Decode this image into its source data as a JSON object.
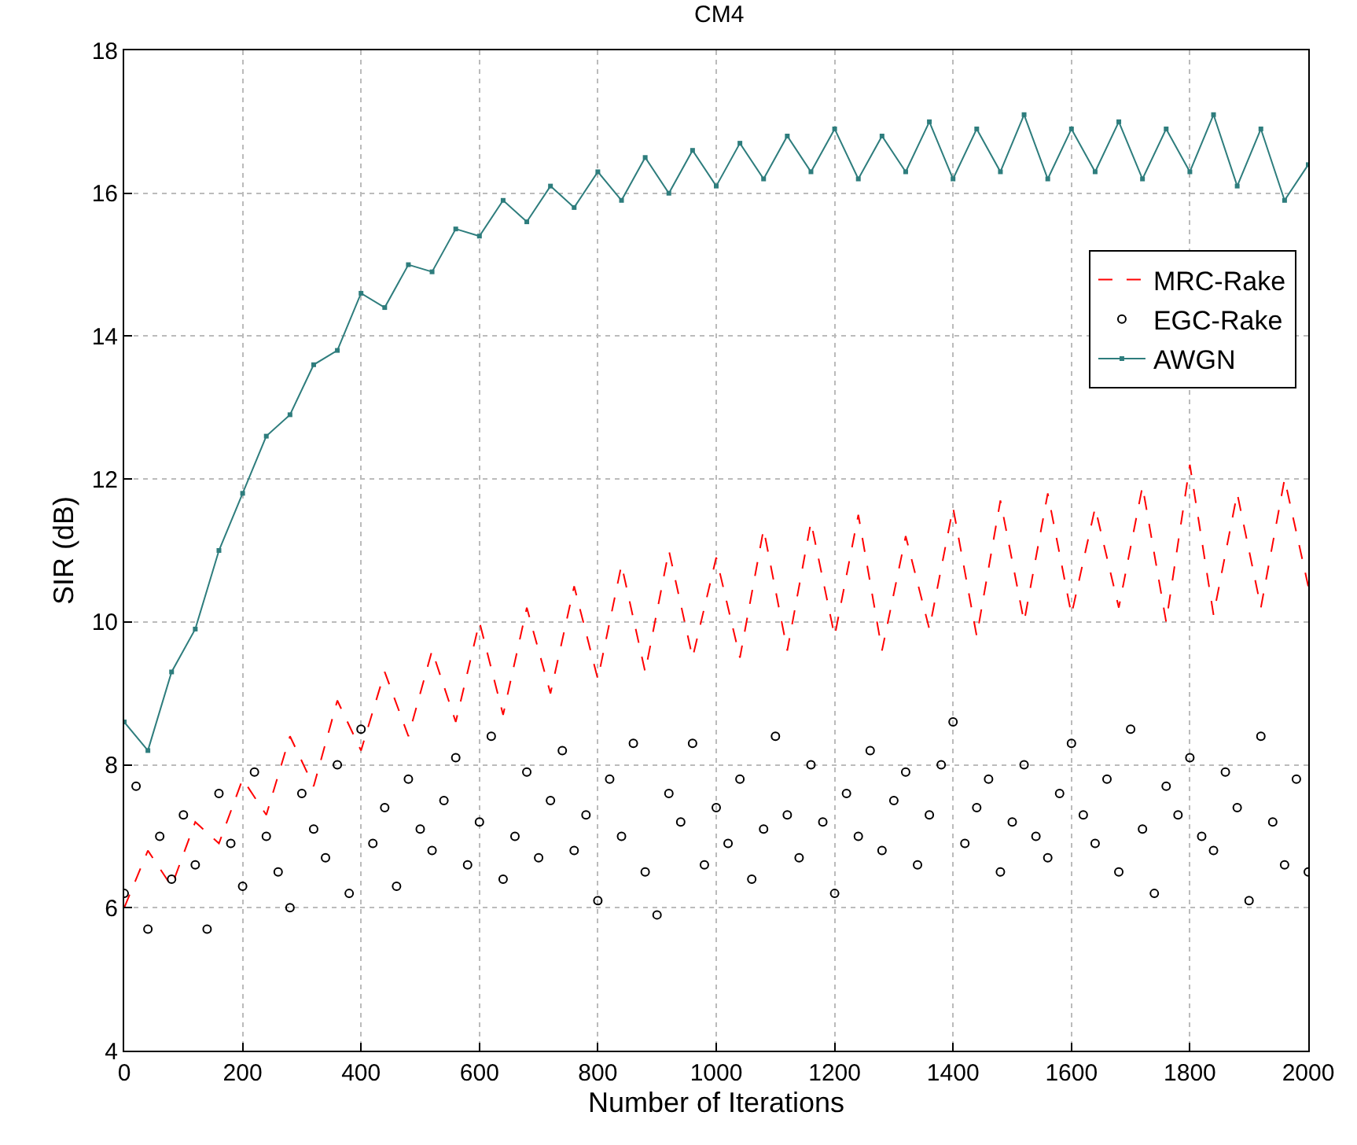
{
  "chart_data": {
    "type": "line",
    "title": "CM4",
    "xlabel": "Number of Iterations",
    "ylabel": "SIR (dB)",
    "xlim": [
      0,
      2000
    ],
    "xticks": [
      0,
      200,
      400,
      600,
      800,
      1000,
      1200,
      1400,
      1600,
      1800,
      2000
    ],
    "ylim": [
      4,
      18
    ],
    "yticks": [
      4,
      6,
      8,
      10,
      12,
      14,
      16,
      18
    ],
    "grid": true,
    "legend": "top right",
    "series": [
      {
        "name": "MRC-Rake",
        "color": "#ff0000",
        "line_style": "dashed",
        "marker": "none",
        "x": [
          0,
          40,
          80,
          120,
          160,
          200,
          240,
          280,
          320,
          360,
          400,
          440,
          480,
          520,
          560,
          600,
          640,
          680,
          720,
          760,
          800,
          840,
          880,
          920,
          960,
          1000,
          1040,
          1080,
          1120,
          1160,
          1200,
          1240,
          1280,
          1320,
          1360,
          1400,
          1440,
          1480,
          1520,
          1560,
          1600,
          1640,
          1680,
          1720,
          1760,
          1800,
          1840,
          1880,
          1920,
          1960,
          2000
        ],
        "values": [
          6.0,
          6.8,
          6.3,
          7.2,
          6.9,
          7.8,
          7.3,
          8.4,
          7.7,
          8.9,
          8.2,
          9.3,
          8.4,
          9.6,
          8.6,
          10.0,
          8.7,
          10.2,
          9.0,
          10.5,
          9.2,
          10.8,
          9.3,
          11.0,
          9.5,
          10.9,
          9.5,
          11.3,
          9.6,
          11.4,
          9.8,
          11.5,
          9.6,
          11.2,
          9.9,
          11.6,
          9.8,
          11.7,
          10.0,
          11.8,
          10.1,
          11.6,
          10.2,
          11.9,
          10.0,
          12.2,
          10.1,
          11.8,
          10.2,
          12.0,
          10.5
        ]
      },
      {
        "name": "EGC-Rake",
        "color": "#000000",
        "type": "scatter",
        "marker": "circle",
        "x": [
          0,
          20,
          40,
          60,
          80,
          100,
          120,
          140,
          160,
          180,
          200,
          220,
          240,
          260,
          280,
          300,
          320,
          340,
          360,
          380,
          400,
          420,
          440,
          460,
          480,
          500,
          520,
          540,
          560,
          580,
          600,
          620,
          640,
          660,
          680,
          700,
          720,
          740,
          760,
          780,
          800,
          820,
          840,
          860,
          880,
          900,
          920,
          940,
          960,
          980,
          1000,
          1020,
          1040,
          1060,
          1080,
          1100,
          1120,
          1140,
          1160,
          1180,
          1200,
          1220,
          1240,
          1260,
          1280,
          1300,
          1320,
          1340,
          1360,
          1380,
          1400,
          1420,
          1440,
          1460,
          1480,
          1500,
          1520,
          1540,
          1560,
          1580,
          1600,
          1620,
          1640,
          1660,
          1680,
          1700,
          1720,
          1740,
          1760,
          1780,
          1800,
          1820,
          1840,
          1860,
          1880,
          1900,
          1920,
          1940,
          1960,
          1980,
          2000
        ],
        "values": [
          6.2,
          7.7,
          5.7,
          7.0,
          6.4,
          7.3,
          6.6,
          5.7,
          7.6,
          6.9,
          6.3,
          7.9,
          7.0,
          6.5,
          6.0,
          7.6,
          7.1,
          6.7,
          8.0,
          6.2,
          8.5,
          6.9,
          7.4,
          6.3,
          7.8,
          7.1,
          6.8,
          7.5,
          8.1,
          6.6,
          7.2,
          8.4,
          6.4,
          7.0,
          7.9,
          6.7,
          7.5,
          8.2,
          6.8,
          7.3,
          6.1,
          7.8,
          7.0,
          8.3,
          6.5,
          5.9,
          7.6,
          7.2,
          8.3,
          6.6,
          7.4,
          6.9,
          7.8,
          6.4,
          7.1,
          8.4,
          7.3,
          6.7,
          8.0,
          7.2,
          6.2,
          7.6,
          7.0,
          8.2,
          6.8,
          7.5,
          7.9,
          6.6,
          7.3,
          8.0,
          8.6,
          6.9,
          7.4,
          7.8,
          6.5,
          7.2,
          8.0,
          7.0,
          6.7,
          7.6,
          8.3,
          7.3,
          6.9,
          7.8,
          6.5,
          8.5,
          7.1,
          6.2,
          7.7,
          7.3,
          8.1,
          7.0,
          6.8,
          7.9,
          7.4,
          6.1,
          8.4,
          7.2,
          6.6,
          7.8,
          6.5
        ]
      },
      {
        "name": "AWGN",
        "color": "#2e7d7d",
        "line_style": "solid",
        "marker": "square",
        "x": [
          0,
          40,
          80,
          120,
          160,
          200,
          240,
          280,
          320,
          360,
          400,
          440,
          480,
          520,
          560,
          600,
          640,
          680,
          720,
          760,
          800,
          840,
          880,
          920,
          960,
          1000,
          1040,
          1080,
          1120,
          1160,
          1200,
          1240,
          1280,
          1320,
          1360,
          1400,
          1440,
          1480,
          1520,
          1560,
          1600,
          1640,
          1680,
          1720,
          1760,
          1800,
          1840,
          1880,
          1920,
          1960,
          2000
        ],
        "values": [
          8.6,
          8.2,
          9.3,
          9.9,
          11.0,
          11.8,
          12.6,
          12.9,
          13.6,
          13.8,
          14.6,
          14.4,
          15.0,
          14.9,
          15.5,
          15.4,
          15.9,
          15.6,
          16.1,
          15.8,
          16.3,
          15.9,
          16.5,
          16.0,
          16.6,
          16.1,
          16.7,
          16.2,
          16.8,
          16.3,
          16.9,
          16.2,
          16.8,
          16.3,
          17.0,
          16.2,
          16.9,
          16.3,
          17.1,
          16.2,
          16.9,
          16.3,
          17.0,
          16.2,
          16.9,
          16.3,
          17.1,
          16.1,
          16.9,
          15.9,
          16.4
        ]
      }
    ]
  }
}
